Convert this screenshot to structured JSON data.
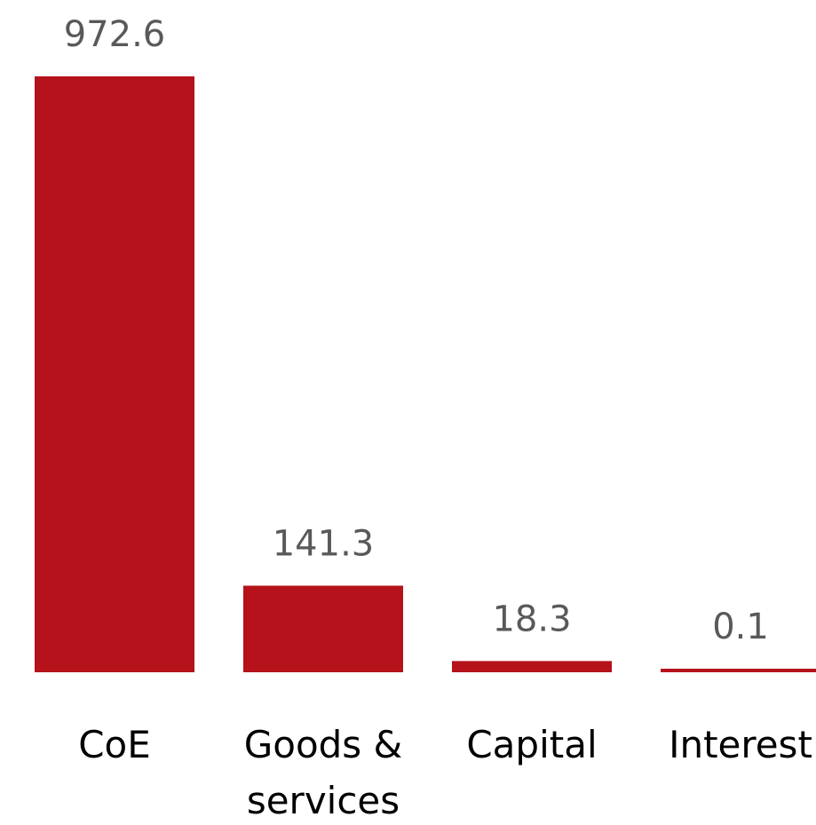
{
  "chart_data": {
    "type": "bar",
    "categories": [
      [
        "CoE"
      ],
      [
        "Goods &",
        "services"
      ],
      [
        "Capital"
      ],
      [
        "Interest"
      ]
    ],
    "values": [
      972.6,
      141.3,
      18.3,
      0.1
    ],
    "value_labels": [
      "972.6",
      "141.3",
      "18.3",
      "0.1"
    ],
    "ylim": [
      0,
      972.6
    ],
    "grid": false,
    "legend": "none",
    "bar_color": "#B5121B"
  }
}
